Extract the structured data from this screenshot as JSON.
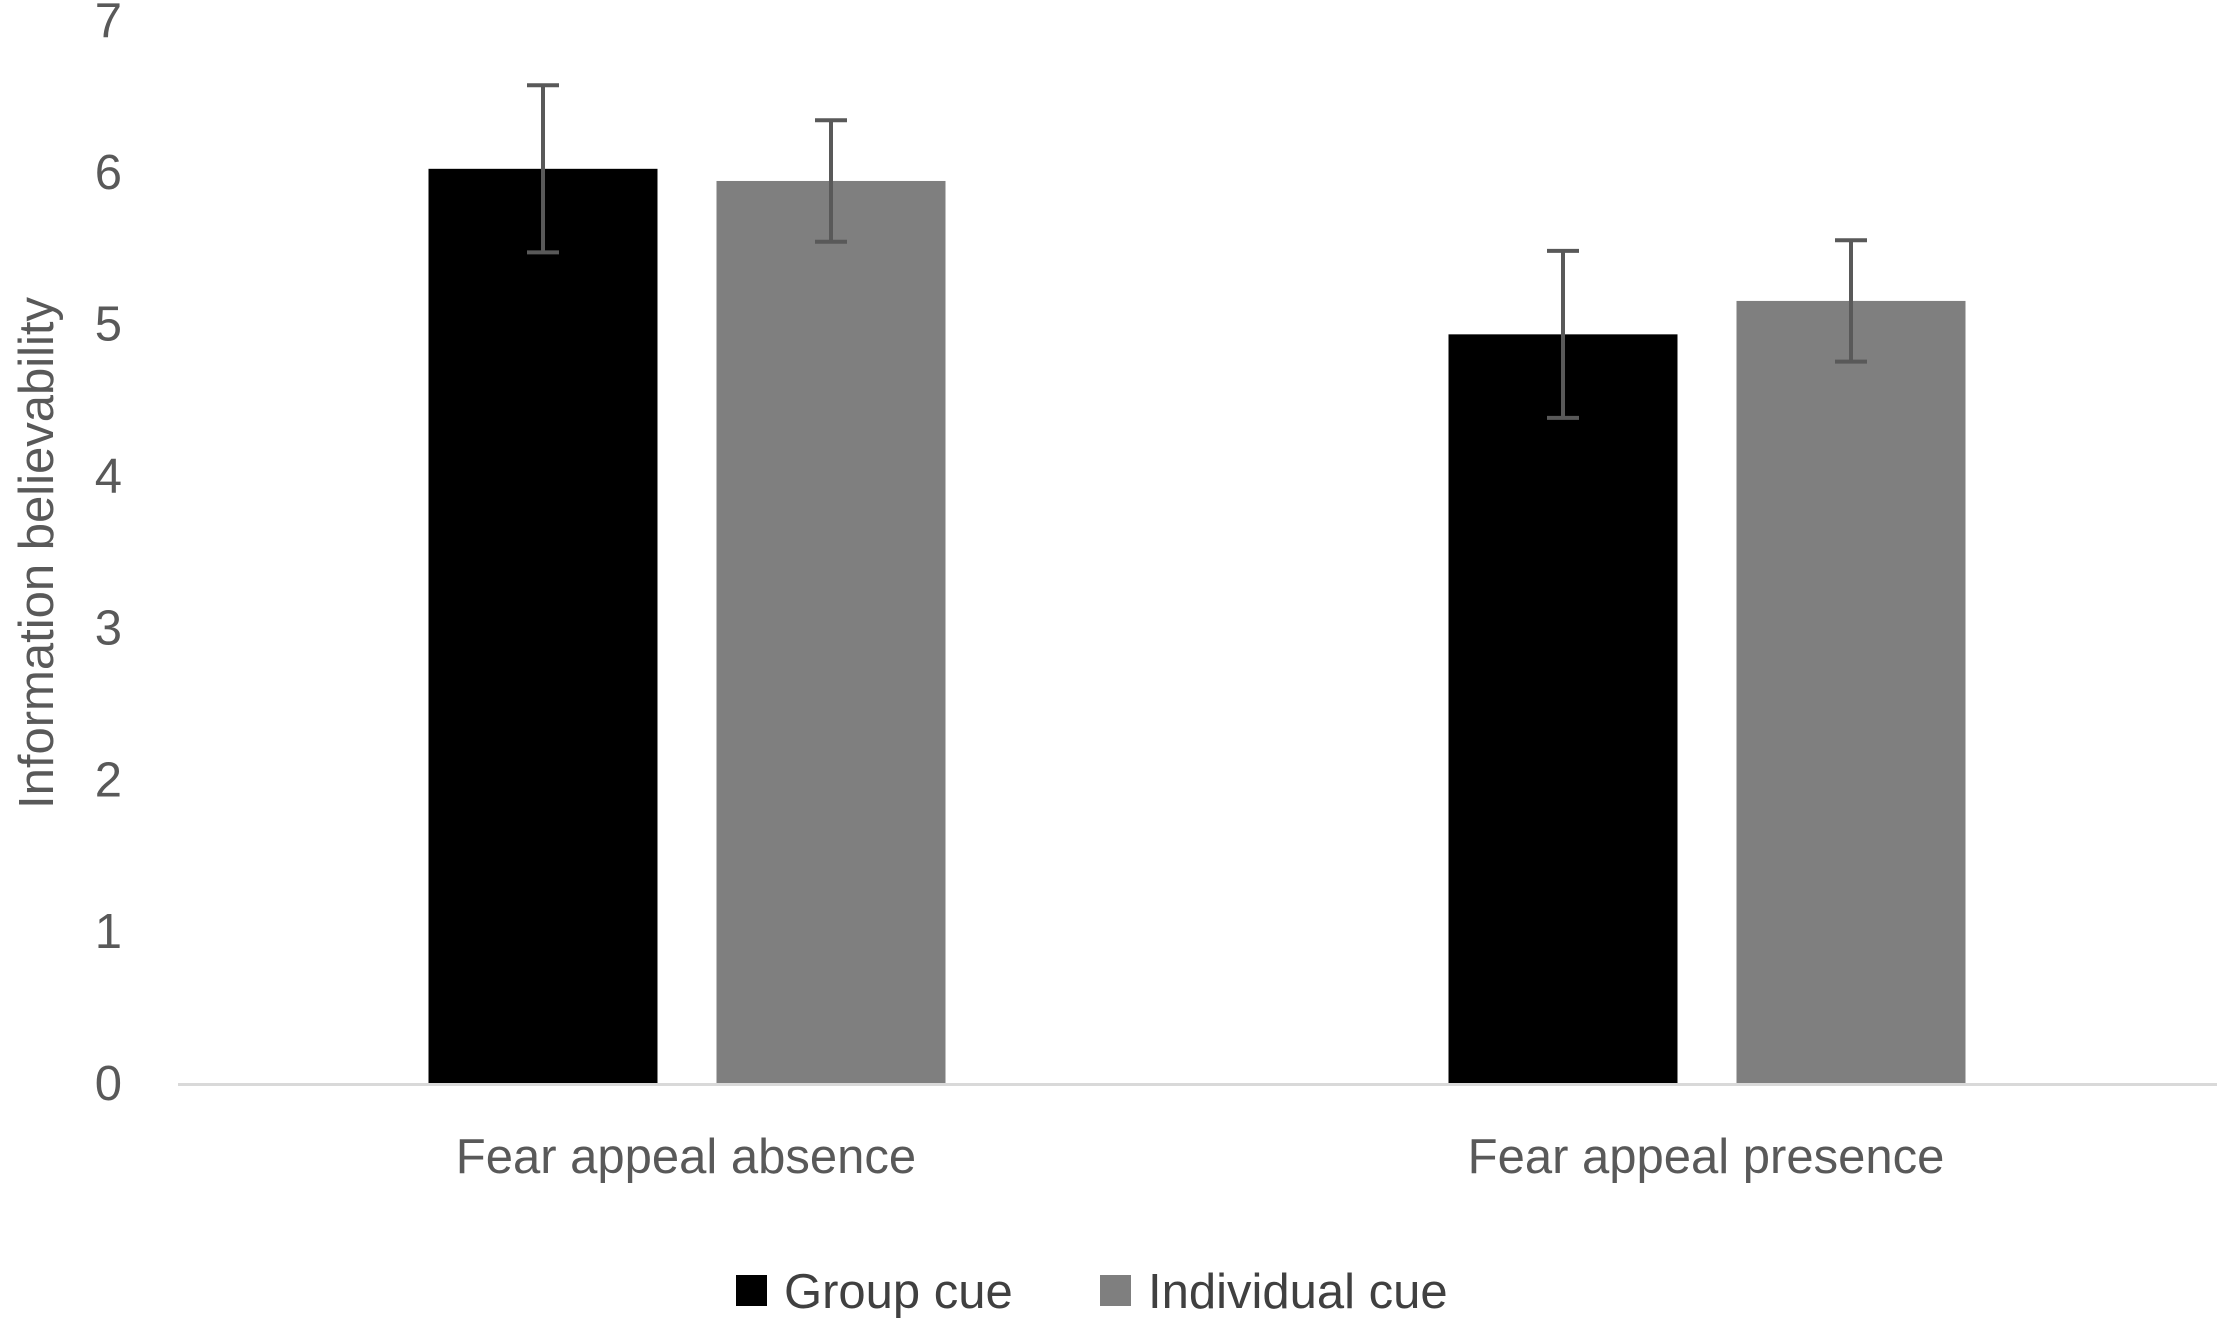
{
  "chart_data": {
    "type": "bar",
    "title": "",
    "xlabel": "",
    "ylabel": "Information believability",
    "ylim": [
      0,
      7
    ],
    "yticks": [
      "0",
      "1",
      "2",
      "3",
      "4",
      "5",
      "6",
      "7"
    ],
    "categories": [
      "Fear appeal absence",
      "Fear appeal presence"
    ],
    "series": [
      {
        "name": "Group cue",
        "color": "#000000",
        "values": [
          6.02,
          4.93
        ],
        "error": [
          0.55,
          0.55
        ]
      },
      {
        "name": "Individual cue",
        "color": "#7f7f7f",
        "values": [
          5.94,
          5.15
        ],
        "error": [
          0.4,
          0.4
        ]
      }
    ],
    "grid": false,
    "legend_position": "bottom"
  }
}
